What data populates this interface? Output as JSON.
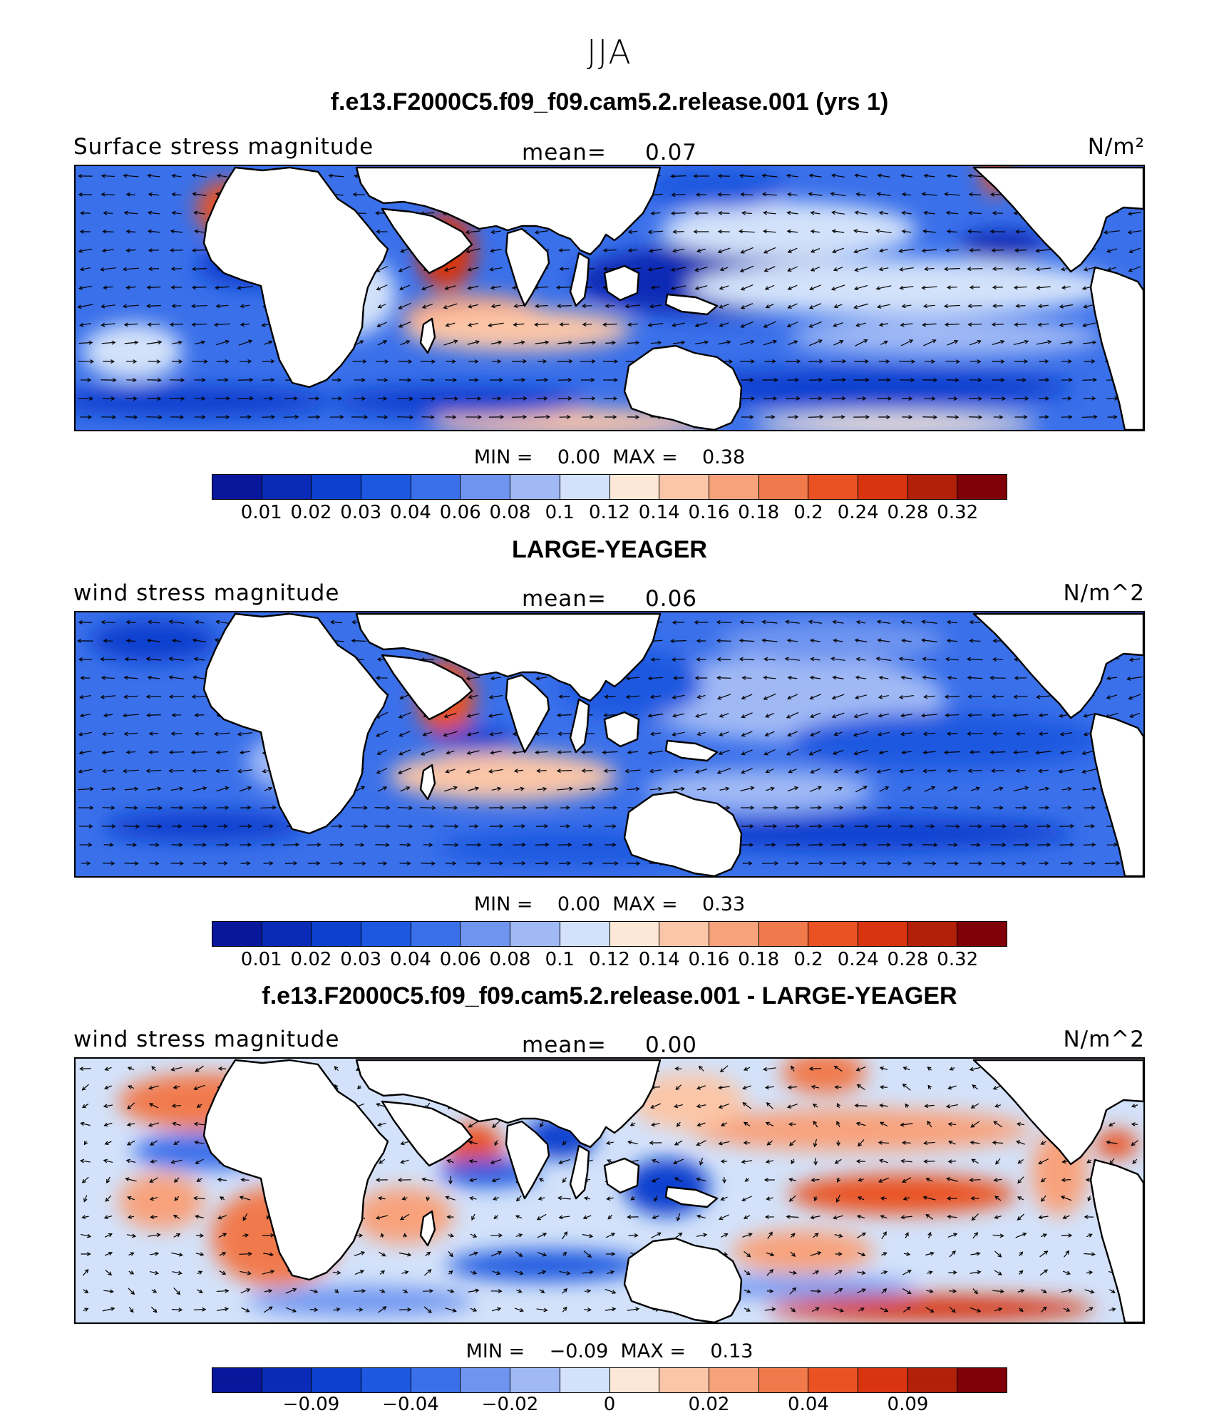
{
  "season": "JJA",
  "colors": {
    "seq": [
      "#08179b",
      "#0a2bb5",
      "#0d40cf",
      "#1d58e0",
      "#3a70ea",
      "#6e94f0",
      "#a0b9f5",
      "#d3e2fa",
      "#fde7d6",
      "#fbc6a7",
      "#f8a27b",
      "#f17a4d",
      "#ea5224",
      "#d83410",
      "#b2200a",
      "#800008"
    ],
    "land": "#ffffff",
    "coast": "#000000"
  },
  "colorbar_ticks": {
    "abs": [
      "0.01",
      "0.02",
      "0.03",
      "0.04",
      "0.06",
      "0.08",
      "0.1",
      "0.12",
      "0.14",
      "0.16",
      "0.18",
      "0.2",
      "0.24",
      "0.28",
      "0.32"
    ],
    "diff": [
      "−0.09",
      "−0.04",
      "−0.02",
      "0",
      "0.02",
      "0.04",
      "0.09"
    ]
  },
  "panels": [
    {
      "title": "f.e13.F2000C5.f09_f09.cam5.2.release.001 (yrs 1)",
      "left_label": "Surface stress magnitude",
      "mean_label": "mean=",
      "mean_value": "0.07",
      "units": "N/m²",
      "min_label": "MIN =",
      "min_value": "0.00",
      "max_label": "MAX =",
      "max_value": "0.38"
    },
    {
      "title": "LARGE-YEAGER",
      "left_label": "wind stress magnitude",
      "mean_label": "mean=",
      "mean_value": "0.06",
      "units": "N/m^2",
      "min_label": "MIN =",
      "min_value": "0.00",
      "max_label": "MAX =",
      "max_value": "0.33"
    },
    {
      "title": "f.e13.F2000C5.f09_f09.cam5.2.release.001 - LARGE-YEAGER",
      "left_label": "wind stress magnitude",
      "mean_label": "mean=",
      "mean_value": "0.00",
      "units": "N/m^2",
      "min_label": "MIN =",
      "min_value": "−0.09",
      "max_label": "MAX =",
      "max_value": "0.13"
    }
  ]
}
